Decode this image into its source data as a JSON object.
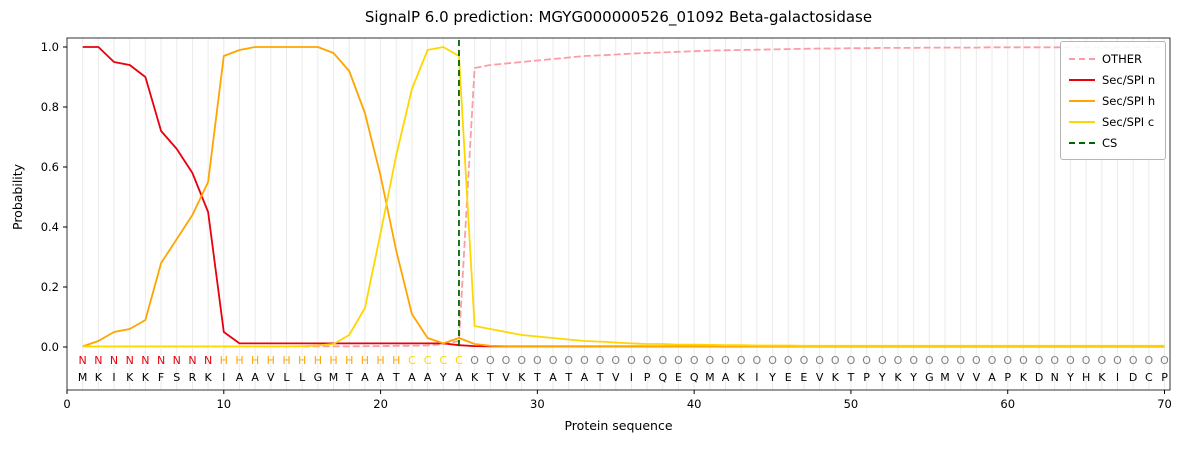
{
  "chart_data": {
    "type": "line",
    "title": "SignalP 6.0 prediction: MGYG000000526_01092 Beta-galactosidase",
    "xlabel": "Protein sequence",
    "ylabel": "Probability",
    "xlim": [
      0,
      70.35
    ],
    "ylim": [
      0.0,
      1.0
    ],
    "x_ticks": [
      "0",
      "10",
      "20",
      "30",
      "40",
      "50",
      "60",
      "70"
    ],
    "y_ticks": [
      "0.0",
      "0.2",
      "0.4",
      "0.6",
      "0.8",
      "1.0"
    ],
    "grid": "vertical-per-residue",
    "legend_position": "upper-right",
    "sequence": "MKIKKFSRKIAAVLLGMTAATAAYAKTVKTATATVIPQEQMAKIYEEVKTPYKYGMVVAPKDNYHKIDCP",
    "regions": "NNNNNNNNNHHHHHHHHHHHHCCCCOOOOOOOOOOOOOOOOOOOOOOOOOOOOOOOOOOOOOOOOOOOOO",
    "cs": {
      "label": "CS",
      "position": 25,
      "dashed": true
    },
    "series": [
      {
        "key": "other",
        "name": "OTHER",
        "dashed": true,
        "values": [
          0.002,
          0.002,
          0.002,
          0.002,
          0.002,
          0.002,
          0.002,
          0.002,
          0.002,
          0.002,
          0.002,
          0.002,
          0.002,
          0.002,
          0.002,
          0.002,
          0.002,
          0.002,
          0.003,
          0.003,
          0.004,
          0.004,
          0.005,
          0.01,
          0.02,
          0.93,
          0.94,
          0.945,
          0.95,
          0.955,
          0.96,
          0.965,
          0.97,
          0.972,
          0.975,
          0.978,
          0.98,
          0.982,
          0.984,
          0.986,
          0.988,
          0.989,
          0.99,
          0.991,
          0.992,
          0.993,
          0.994,
          0.995,
          0.995,
          0.996,
          0.996,
          0.997,
          0.997,
          0.997,
          0.998,
          0.998,
          0.998,
          0.998,
          0.999,
          0.999,
          0.999,
          0.999,
          0.999,
          0.999,
          0.999,
          0.999,
          0.999,
          0.999,
          0.999,
          0.999
        ]
      },
      {
        "key": "n",
        "name": "Sec/SPI n",
        "dashed": false,
        "values": [
          1.0,
          1.0,
          0.95,
          0.94,
          0.9,
          0.72,
          0.66,
          0.58,
          0.45,
          0.05,
          0.012,
          0.012,
          0.012,
          0.012,
          0.012,
          0.012,
          0.012,
          0.012,
          0.012,
          0.012,
          0.012,
          0.012,
          0.012,
          0.012,
          0.006,
          0.003,
          0.002,
          0.002,
          0.002,
          0.002,
          0.002,
          0.002,
          0.002,
          0.002,
          0.002,
          0.002,
          0.002,
          0.002,
          0.002,
          0.002,
          0.002,
          0.002,
          0.002,
          0.002,
          0.002,
          0.002,
          0.002,
          0.002,
          0.002,
          0.002,
          0.002,
          0.002,
          0.002,
          0.002,
          0.002,
          0.002,
          0.002,
          0.002,
          0.002,
          0.002,
          0.002,
          0.002,
          0.002,
          0.002,
          0.002,
          0.002,
          0.002,
          0.002,
          0.002,
          0.002
        ]
      },
      {
        "key": "h",
        "name": "Sec/SPI h",
        "dashed": false,
        "values": [
          0.002,
          0.02,
          0.05,
          0.06,
          0.09,
          0.28,
          0.36,
          0.44,
          0.55,
          0.97,
          0.99,
          1.0,
          1.0,
          1.0,
          1.0,
          1.0,
          0.98,
          0.92,
          0.78,
          0.57,
          0.32,
          0.11,
          0.03,
          0.012,
          0.03,
          0.01,
          0.004,
          0.003,
          0.003,
          0.003,
          0.003,
          0.003,
          0.003,
          0.003,
          0.003,
          0.003,
          0.003,
          0.003,
          0.003,
          0.003,
          0.003,
          0.003,
          0.003,
          0.003,
          0.003,
          0.003,
          0.003,
          0.003,
          0.003,
          0.003,
          0.003,
          0.003,
          0.003,
          0.003,
          0.003,
          0.003,
          0.003,
          0.003,
          0.003,
          0.003,
          0.003,
          0.003,
          0.003,
          0.003,
          0.003,
          0.003,
          0.003,
          0.003,
          0.003,
          0.003
        ]
      },
      {
        "key": "c",
        "name": "Sec/SPI c",
        "dashed": false,
        "values": [
          0.002,
          0.002,
          0.002,
          0.002,
          0.002,
          0.002,
          0.002,
          0.002,
          0.002,
          0.002,
          0.002,
          0.002,
          0.002,
          0.002,
          0.003,
          0.005,
          0.01,
          0.04,
          0.13,
          0.38,
          0.64,
          0.86,
          0.99,
          1.0,
          0.97,
          0.07,
          0.06,
          0.05,
          0.04,
          0.035,
          0.03,
          0.025,
          0.02,
          0.018,
          0.015,
          0.012,
          0.01,
          0.01,
          0.008,
          0.008,
          0.007,
          0.006,
          0.006,
          0.005,
          0.005,
          0.005,
          0.004,
          0.004,
          0.004,
          0.004,
          0.004,
          0.004,
          0.004,
          0.004,
          0.004,
          0.004,
          0.004,
          0.004,
          0.004,
          0.004,
          0.004,
          0.004,
          0.004,
          0.004,
          0.004,
          0.004,
          0.004,
          0.004,
          0.004,
          0.004
        ]
      }
    ],
    "legend": [
      {
        "key": "other",
        "label": "OTHER",
        "dashed": true
      },
      {
        "key": "n",
        "label": "Sec/SPI n",
        "dashed": false
      },
      {
        "key": "h",
        "label": "Sec/SPI h",
        "dashed": false
      },
      {
        "key": "c",
        "label": "Sec/SPI c",
        "dashed": false
      },
      {
        "key": "cs",
        "label": "CS",
        "dashed": true
      }
    ],
    "colors": {
      "other": "#fb9da5",
      "n": "#e8000d",
      "h": "#ffa500",
      "c": "#ffd700",
      "cs": "#006400",
      "region_o": "#7f7f7f",
      "grid": "#ebebeb",
      "axis": "#000000",
      "residue_text": "#000000"
    }
  }
}
